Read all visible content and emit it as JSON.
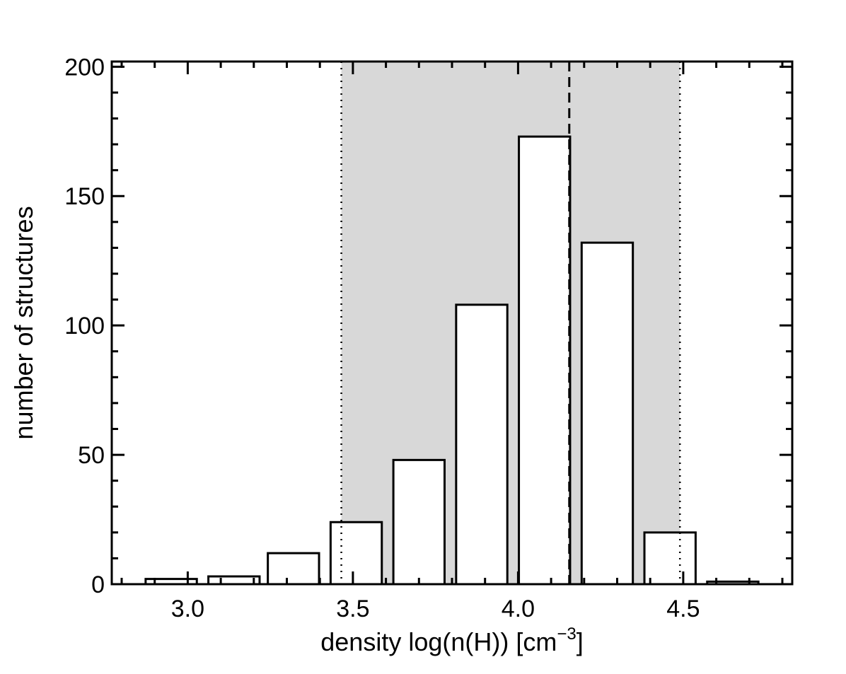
{
  "chart_data": {
    "type": "bar",
    "title": "",
    "xlabel": "density log(n(H)) [cm",
    "xlabel_sup": "−3",
    "xlabel_close": "]",
    "ylabel": "number of structures",
    "xlim": [
      2.77,
      4.83
    ],
    "ylim": [
      0,
      202
    ],
    "x_ticks": [
      3.0,
      3.5,
      4.0,
      4.5
    ],
    "x_tick_labels": [
      "3.0",
      "3.5",
      "4.0",
      "4.5"
    ],
    "y_ticks": [
      0,
      50,
      100,
      150,
      200
    ],
    "y_tick_labels": [
      "0",
      "50",
      "100",
      "150",
      "200"
    ],
    "x_minor_step": 0.1,
    "y_minor_step": 10,
    "grid": false,
    "bin_width": 0.19,
    "bins": [
      {
        "center": 2.95,
        "count": 2
      },
      {
        "center": 3.14,
        "count": 3
      },
      {
        "center": 3.32,
        "count": 12
      },
      {
        "center": 3.51,
        "count": 24
      },
      {
        "center": 3.7,
        "count": 48
      },
      {
        "center": 3.89,
        "count": 108
      },
      {
        "center": 4.08,
        "count": 173
      },
      {
        "center": 4.27,
        "count": 132
      },
      {
        "center": 4.46,
        "count": 20
      },
      {
        "center": 4.65,
        "count": 1
      }
    ],
    "shaded_range": [
      3.465,
      4.49
    ],
    "shaded_color": "#d8d8d8",
    "dotted_lines": [
      3.465,
      4.49
    ],
    "dashed_line": 4.155,
    "bar_color": "#ffffff",
    "edge_color": "#000000"
  }
}
